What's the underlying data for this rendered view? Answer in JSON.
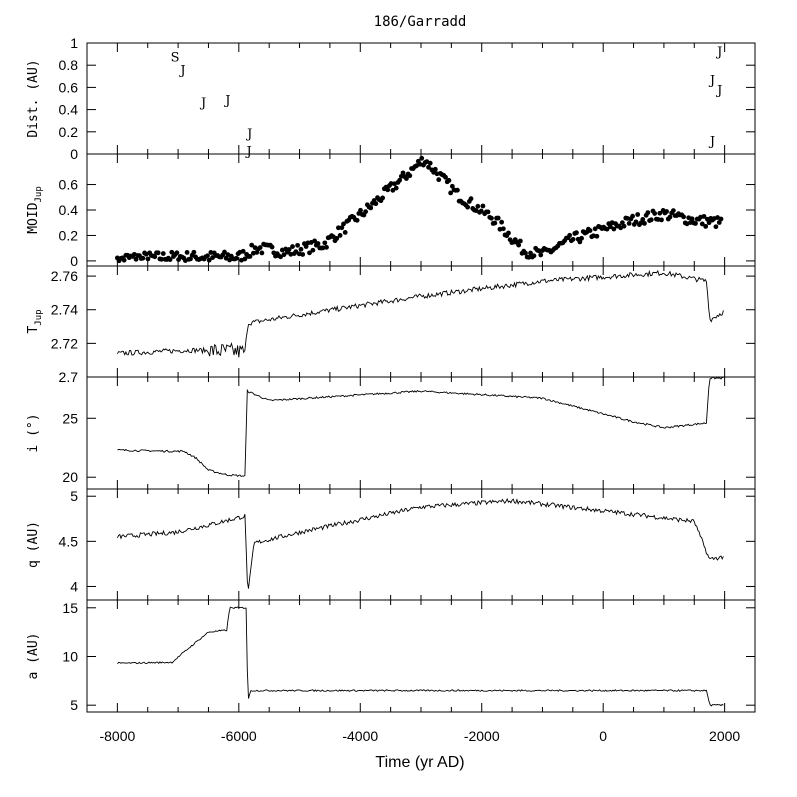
{
  "chart_data": {
    "type": "line",
    "title": "186/Garradd",
    "xlabel": "Time (yr AD)",
    "xlim": [
      -8500,
      2500
    ],
    "xticks": [
      "-8000",
      "-6000",
      "-4000",
      "-2000",
      "0",
      "2000"
    ],
    "panels": [
      {
        "id": "dist",
        "ylabel": "Dist. (AU)",
        "ylim": [
          0,
          1
        ],
        "yticks": [
          "0",
          "0.2",
          "0.4",
          "0.6",
          "0.8",
          "1"
        ],
        "kind": "markers",
        "markers": [
          {
            "label": "S",
            "x": -7050,
            "y": 0.88
          },
          {
            "label": "J",
            "x": -6920,
            "y": 0.76
          },
          {
            "label": "J",
            "x": -6580,
            "y": 0.47
          },
          {
            "label": "J",
            "x": -6180,
            "y": 0.49
          },
          {
            "label": "J",
            "x": -5820,
            "y": 0.19
          },
          {
            "label": "J",
            "x": -5830,
            "y": 0.03
          },
          {
            "label": "J",
            "x": 1920,
            "y": 0.93
          },
          {
            "label": "J",
            "x": 1800,
            "y": 0.67
          },
          {
            "label": "J",
            "x": 1920,
            "y": 0.58
          },
          {
            "label": "J",
            "x": 1800,
            "y": 0.12
          }
        ]
      },
      {
        "id": "moid",
        "ylabel": "MOID",
        "ylabel_sub": "Jup",
        "ylim": [
          -0.04,
          0.84
        ],
        "yticks": [
          "0",
          "0.2",
          "0.4",
          "0.6"
        ],
        "kind": "scatter",
        "anchors": [
          [
            -8000,
            0.02
          ],
          [
            -7000,
            0.03
          ],
          [
            -6000,
            0.03
          ],
          [
            -5700,
            0.1
          ],
          [
            -5200,
            0.07
          ],
          [
            -4600,
            0.13
          ],
          [
            -3900,
            0.4
          ],
          [
            -3300,
            0.65
          ],
          [
            -2950,
            0.8
          ],
          [
            -2400,
            0.52
          ],
          [
            -1800,
            0.33
          ],
          [
            -1300,
            0.08
          ],
          [
            -1000,
            0.05
          ],
          [
            -500,
            0.17
          ],
          [
            500,
            0.32
          ],
          [
            1000,
            0.37
          ],
          [
            1500,
            0.32
          ],
          [
            1950,
            0.3
          ]
        ]
      },
      {
        "id": "tjup",
        "ylabel": "T",
        "ylabel_sub": "Jup",
        "ylim": [
          2.7,
          2.766
        ],
        "yticks": [
          "2.7",
          "2.72",
          "2.74",
          "2.76"
        ],
        "kind": "line",
        "anchors": [
          [
            -8000,
            2.714
          ],
          [
            -6800,
            2.716
          ],
          [
            -5900,
            2.715
          ],
          [
            -5850,
            2.732
          ],
          [
            -5000,
            2.737
          ],
          [
            -3000,
            2.748
          ],
          [
            -1000,
            2.757
          ],
          [
            1000,
            2.762
          ],
          [
            1700,
            2.757
          ],
          [
            1760,
            2.734
          ],
          [
            1990,
            2.739
          ]
        ]
      },
      {
        "id": "incl",
        "ylabel": "i (°)",
        "ylim": [
          19,
          28.5
        ],
        "yticks": [
          "20",
          "25"
        ],
        "kind": "line",
        "anchors": [
          [
            -8000,
            22.3
          ],
          [
            -7100,
            22.2
          ],
          [
            -6900,
            22.2
          ],
          [
            -6700,
            21.6
          ],
          [
            -6500,
            20.6
          ],
          [
            -6200,
            20.2
          ],
          [
            -5900,
            20.1
          ],
          [
            -5860,
            27.3
          ],
          [
            -5500,
            26.5
          ],
          [
            -3000,
            27.3
          ],
          [
            -1000,
            26.7
          ],
          [
            500,
            24.7
          ],
          [
            1000,
            24.2
          ],
          [
            1700,
            24.6
          ],
          [
            1750,
            28.4
          ],
          [
            1990,
            28.4
          ]
        ]
      },
      {
        "id": "q",
        "ylabel": "q (AU)",
        "ylim": [
          3.85,
          5.08
        ],
        "yticks": [
          "4",
          "4.5",
          "5"
        ],
        "kind": "line",
        "anchors": [
          [
            -8000,
            4.55
          ],
          [
            -7050,
            4.6
          ],
          [
            -6500,
            4.68
          ],
          [
            -5900,
            4.78
          ],
          [
            -5850,
            3.9
          ],
          [
            -5750,
            4.48
          ],
          [
            -5000,
            4.6
          ],
          [
            -3000,
            4.88
          ],
          [
            -1500,
            4.95
          ],
          [
            500,
            4.8
          ],
          [
            1500,
            4.72
          ],
          [
            1750,
            4.3
          ],
          [
            1990,
            4.33
          ]
        ]
      },
      {
        "id": "a",
        "ylabel": "a (AU)",
        "ylim": [
          4.3,
          15.8
        ],
        "yticks": [
          "5",
          "10",
          "15"
        ],
        "kind": "line",
        "anchors": [
          [
            -8000,
            9.3
          ],
          [
            -7100,
            9.4
          ],
          [
            -6950,
            10.2
          ],
          [
            -6700,
            11.5
          ],
          [
            -6500,
            12.5
          ],
          [
            -6200,
            12.7
          ],
          [
            -6150,
            15
          ],
          [
            -5880,
            15
          ],
          [
            -5850,
            5.5
          ],
          [
            -5800,
            6.5
          ],
          [
            1700,
            6.5
          ],
          [
            1760,
            5
          ],
          [
            1990,
            5
          ]
        ]
      }
    ]
  }
}
